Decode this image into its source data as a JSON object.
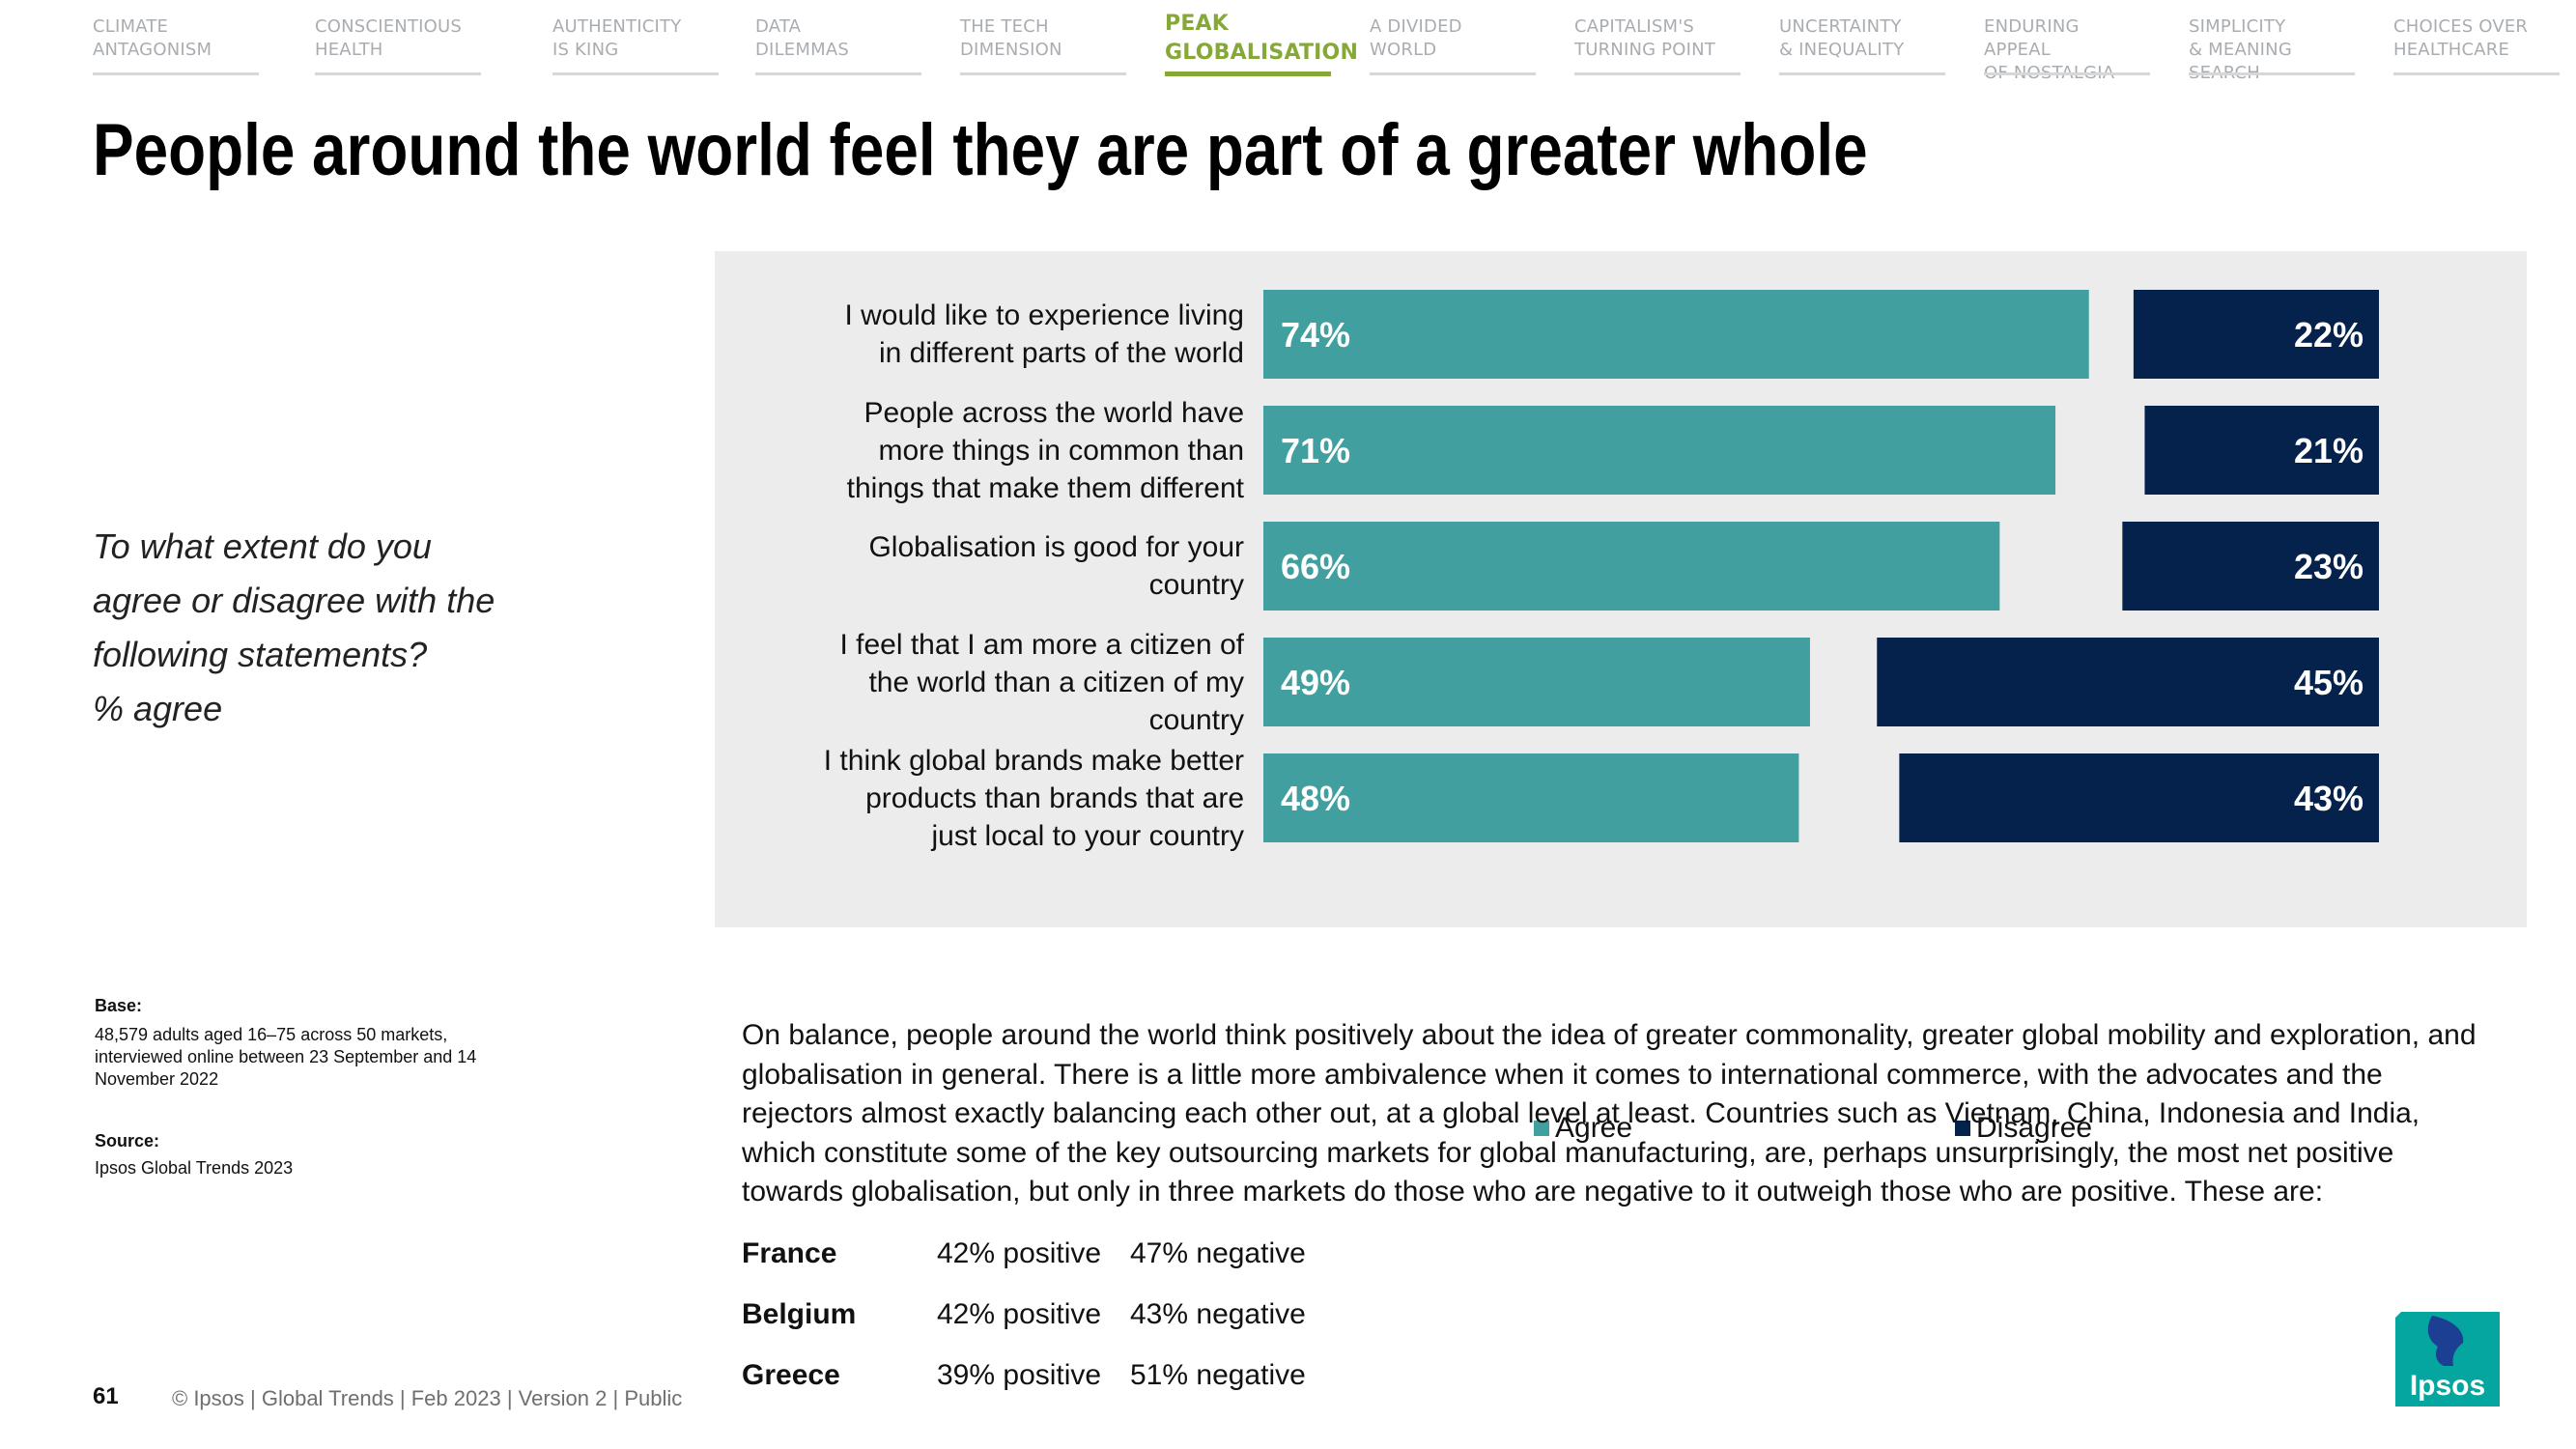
{
  "nav": {
    "items": [
      {
        "label": "CLIMATE\nANTAGONISM",
        "active": false
      },
      {
        "label": "CONSCIENTIOUS\nHEALTH",
        "active": false
      },
      {
        "label": "AUTHENTICITY\nIS KING",
        "active": false
      },
      {
        "label": "DATA\nDILEMMAS",
        "active": false
      },
      {
        "label": "THE TECH\nDIMENSION",
        "active": false
      },
      {
        "label": "PEAK\nGLOBALISATION",
        "active": true
      },
      {
        "label": "A DIVIDED\nWORLD",
        "active": false
      },
      {
        "label": "CAPITALISM'S\nTURNING POINT",
        "active": false
      },
      {
        "label": "UNCERTAINTY\n& INEQUALITY",
        "active": false
      },
      {
        "label": "ENDURING APPEAL\nOF NOSTALGIA",
        "active": false
      },
      {
        "label": "SIMPLICITY\n& MEANING SEARCH",
        "active": false
      },
      {
        "label": "CHOICES OVER\nHEALTHCARE",
        "active": false
      }
    ],
    "inactive_color": "#a9adb1",
    "active_color": "#86a836"
  },
  "title": "People around the world feel they are part of a greater whole",
  "question": "To what extent do you\nagree or disagree with the\nfollowing statements?\n% agree",
  "chart_data": {
    "type": "bar",
    "orientation": "horizontal",
    "categories": [
      "I would like to experience living\nin different parts of the world",
      "People across the world have\nmore things in common than\nthings that make them different",
      "Globalisation is good for your\ncountry",
      "I feel that I am more a citizen of\nthe world than a citizen of my\ncountry",
      "I think global brands make better\nproducts than brands that are\njust local to your country"
    ],
    "series": [
      {
        "name": "Agree",
        "values": [
          74,
          71,
          66,
          49,
          48
        ],
        "color": "#41a09f"
      },
      {
        "name": "Disagree",
        "values": [
          22,
          21,
          23,
          45,
          43
        ],
        "color": "#05224d"
      }
    ],
    "value_suffix": "%",
    "xlim": [
      0,
      100
    ],
    "legend_position": "bottom",
    "grid": false
  },
  "notes": {
    "base_heading": "Base:",
    "base_text": "48,579 adults aged 16–75 across 50 markets, interviewed online between 23 September and 14 November 2022",
    "source_heading": "Source:",
    "source_text": "Ipsos Global Trends 2023"
  },
  "body_text": "On balance, people around the world think positively about the idea of greater commonality, greater global mobility and exploration, and globalisation in general. There is a little more ambivalence when it comes to international commerce, with the advocates and the rejectors almost exactly balancing each other out, at a global level at least. Countries such as Vietnam, China, Indonesia and India, which constitute some of the key outsourcing markets for global manufacturing, are, perhaps unsurprisingly, the most net positive towards globalisation, but only in three markets do those who are negative to it outweigh those who are positive. These are:",
  "countries": [
    {
      "name": "France",
      "positive": "42% positive",
      "negative": "47% negative"
    },
    {
      "name": "Belgium",
      "positive": "42% positive",
      "negative": "43% negative"
    },
    {
      "name": "Greece",
      "positive": "39% positive",
      "negative": "51% negative"
    }
  ],
  "footer": {
    "page_number": "61",
    "text": "© Ipsos | Global Trends | Feb 2023 | Version 2 | Public"
  },
  "logo": {
    "text": "Ipsos",
    "color": "#06a6a0",
    "accent": "#1d3f93"
  }
}
